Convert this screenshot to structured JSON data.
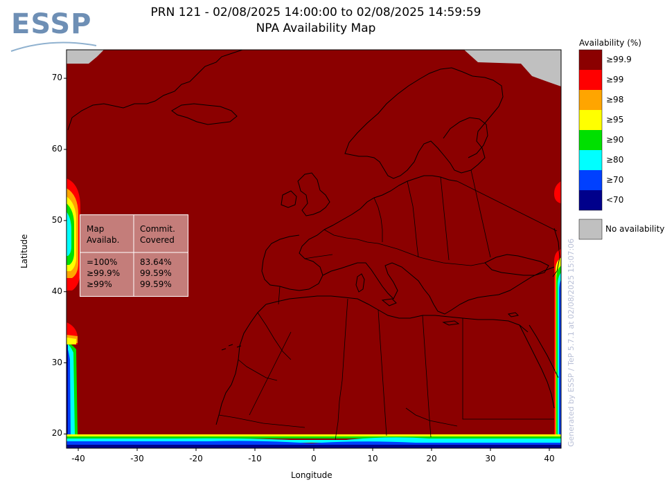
{
  "title": {
    "line1": "PRN 121 - 02/08/2025 14:00:00 to 02/08/2025 14:59:59",
    "line2": "NPA Availability Map"
  },
  "logo": {
    "text": "ESSP"
  },
  "axes": {
    "xlabel": "Longitude",
    "ylabel": "Latitude",
    "x_ticks": [
      -40,
      -30,
      -20,
      -10,
      0,
      10,
      20,
      30,
      40
    ],
    "y_ticks": [
      20,
      30,
      40,
      50,
      60,
      70
    ],
    "xlim": [
      -42,
      42
    ],
    "ylim": [
      18,
      74
    ]
  },
  "legend": {
    "title": "Availability (%)",
    "items": [
      {
        "label": "≥99.9",
        "color": "#8b0000"
      },
      {
        "label": "≥99",
        "color": "#ff0000"
      },
      {
        "label": "≥98",
        "color": "#ffa500"
      },
      {
        "label": "≥95",
        "color": "#ffff00"
      },
      {
        "label": "≥90",
        "color": "#00e000"
      },
      {
        "label": "≥80",
        "color": "#00ffff"
      },
      {
        "label": "≥70",
        "color": "#0040ff"
      },
      {
        "label": "<70",
        "color": "#00008b"
      }
    ],
    "no_availability": {
      "label": "No availability",
      "color": "#c0c0c0"
    }
  },
  "stats": {
    "header_left": [
      "Map",
      "Availab."
    ],
    "header_right": [
      "Commit.",
      "Covered"
    ],
    "rows": [
      {
        "map": "=100%",
        "covered": "83.64%"
      },
      {
        "map": "≥99.9%",
        "covered": "99.59%"
      },
      {
        "map": "≥99%",
        "covered": "99.59%"
      }
    ]
  },
  "watermark": "Generated by ESSP / TeP 5.7.1 at 02/08/2025 15:07:06",
  "colors": {
    "background_map": "#8b0000",
    "no_data": "#c0c0c0"
  }
}
